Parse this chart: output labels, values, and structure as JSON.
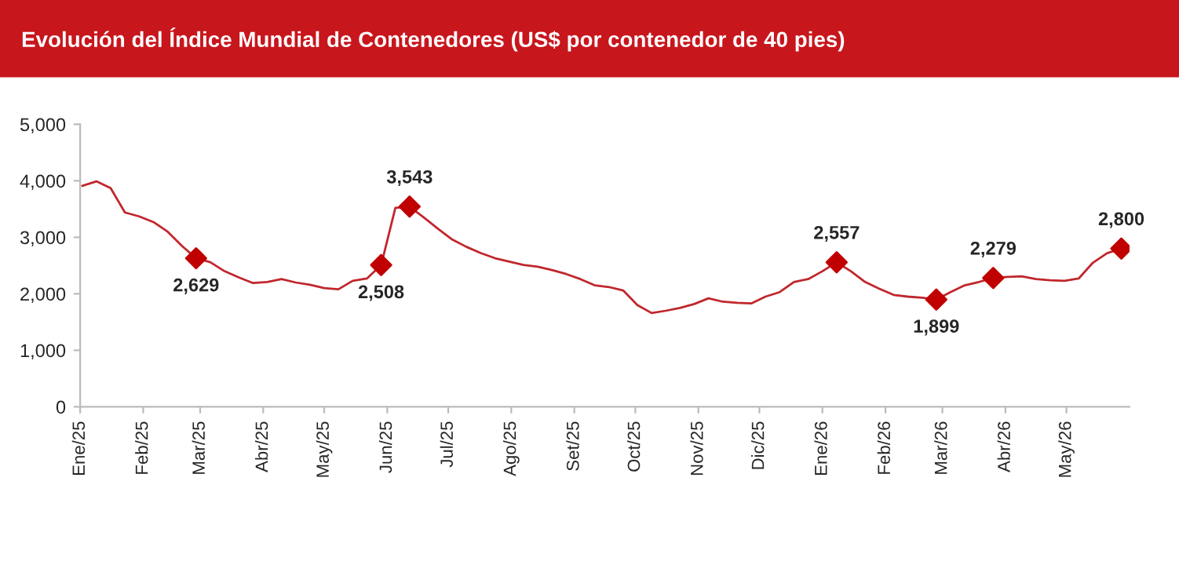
{
  "chart_data": {
    "type": "line",
    "title": "Evolución del Índice Mundial de Contenedores (US$ por contenedor de 40 pies)",
    "x": [
      "2025-01-02",
      "2025-01-09",
      "2025-01-16",
      "2025-01-23",
      "2025-01-30",
      "2025-02-06",
      "2025-02-13",
      "2025-02-20",
      "2025-02-27",
      "2025-03-06",
      "2025-03-13",
      "2025-03-20",
      "2025-03-27",
      "2025-04-03",
      "2025-04-10",
      "2025-04-17",
      "2025-04-24",
      "2025-05-01",
      "2025-05-08",
      "2025-05-15",
      "2025-05-22",
      "2025-05-29",
      "2025-06-05",
      "2025-06-12",
      "2025-06-19",
      "2025-06-26",
      "2025-07-03",
      "2025-07-10",
      "2025-07-17",
      "2025-07-24",
      "2025-07-31",
      "2025-08-07",
      "2025-08-14",
      "2025-08-21",
      "2025-08-28",
      "2025-09-04",
      "2025-09-11",
      "2025-09-18",
      "2025-09-25",
      "2025-10-02",
      "2025-10-09",
      "2025-10-16",
      "2025-10-23",
      "2025-10-30",
      "2025-11-06",
      "2025-11-13",
      "2025-11-20",
      "2025-11-27",
      "2025-12-04",
      "2025-12-11",
      "2025-12-18",
      "2025-12-25",
      "2026-01-01",
      "2026-01-08",
      "2026-01-15",
      "2026-01-22",
      "2026-01-29",
      "2026-02-05",
      "2026-02-12",
      "2026-02-19",
      "2026-02-26",
      "2026-03-05",
      "2026-03-12",
      "2026-03-19",
      "2026-03-26",
      "2026-04-02",
      "2026-04-09",
      "2026-04-16",
      "2026-04-23",
      "2026-04-30",
      "2026-05-07",
      "2026-05-14",
      "2026-05-21",
      "2026-05-28"
    ],
    "series": [
      {
        "color": "#c0272d",
        "marker": "none",
        "values": [
          3910,
          3990,
          3870,
          3440,
          3370,
          3270,
          3100,
          2850,
          2629,
          2560,
          2400,
          2290,
          2190,
          2210,
          2260,
          2200,
          2160,
          2100,
          2080,
          2230,
          2270,
          2508,
          3520,
          3543,
          3350,
          3150,
          2960,
          2830,
          2720,
          2630,
          2570,
          2510,
          2480,
          2420,
          2350,
          2260,
          2150,
          2120,
          2060,
          1800,
          1660,
          1700,
          1750,
          1820,
          1920,
          1860,
          1840,
          1830,
          1950,
          2030,
          2210,
          2260,
          2400,
          2557,
          2400,
          2210,
          2090,
          1980,
          1950,
          1930,
          1899,
          2030,
          2150,
          2210,
          2279,
          2300,
          2310,
          2260,
          2240,
          2230,
          2270,
          2550,
          2720,
          2800
        ]
      },
      {
        "type": "scatter",
        "color": "#c00000",
        "marker": "diamond",
        "x": [
          "2025-02-27",
          "2025-05-29",
          "2025-06-12",
          "2026-01-08",
          "2026-02-26",
          "2026-03-26",
          "2026-05-28"
        ],
        "values": [
          2629,
          2508,
          3543,
          2557,
          1899,
          2279,
          2800
        ],
        "value_labels": [
          "2,629",
          "2,508",
          "3,543",
          "2,557",
          "1,899",
          "2,279",
          "2,800"
        ]
      }
    ],
    "xlim": [
      "2025-01-01",
      "2026-06-01"
    ],
    "xticks": [
      {
        "value": "2025-01-01",
        "label": "Ene/25"
      },
      {
        "value": "2025-02-01",
        "label": "Feb/25"
      },
      {
        "value": "2025-03-01",
        "label": "Mar/25"
      },
      {
        "value": "2025-04-01",
        "label": "Abr/25"
      },
      {
        "value": "2025-05-01",
        "label": "May/25"
      },
      {
        "value": "2025-06-01",
        "label": "Jun/25"
      },
      {
        "value": "2025-07-01",
        "label": "Jul/25"
      },
      {
        "value": "2025-08-01",
        "label": "Ago/25"
      },
      {
        "value": "2025-09-01",
        "label": "Set/25"
      },
      {
        "value": "2025-10-01",
        "label": "Oct/25"
      },
      {
        "value": "2025-11-01",
        "label": "Nov/25"
      },
      {
        "value": "2025-12-01",
        "label": "Dic/25"
      },
      {
        "value": "2026-01-01",
        "label": "Ene/26"
      },
      {
        "value": "2026-02-01",
        "label": "Feb/26"
      },
      {
        "value": "2026-03-01",
        "label": "Mar/26"
      },
      {
        "value": "2026-04-01",
        "label": "Abr/26"
      },
      {
        "value": "2026-05-01",
        "label": "May/26"
      }
    ],
    "ylim": [
      0,
      5000
    ],
    "yticks": [
      0,
      {
        "value": 1000,
        "label": "1,000"
      },
      {
        "value": 2000,
        "label": "2,000"
      },
      {
        "value": 3000,
        "label": "3,000"
      },
      {
        "value": 4000,
        "label": "4,000"
      },
      {
        "value": 5000,
        "label": "5,000"
      }
    ],
    "grid": false,
    "legend": false
  }
}
